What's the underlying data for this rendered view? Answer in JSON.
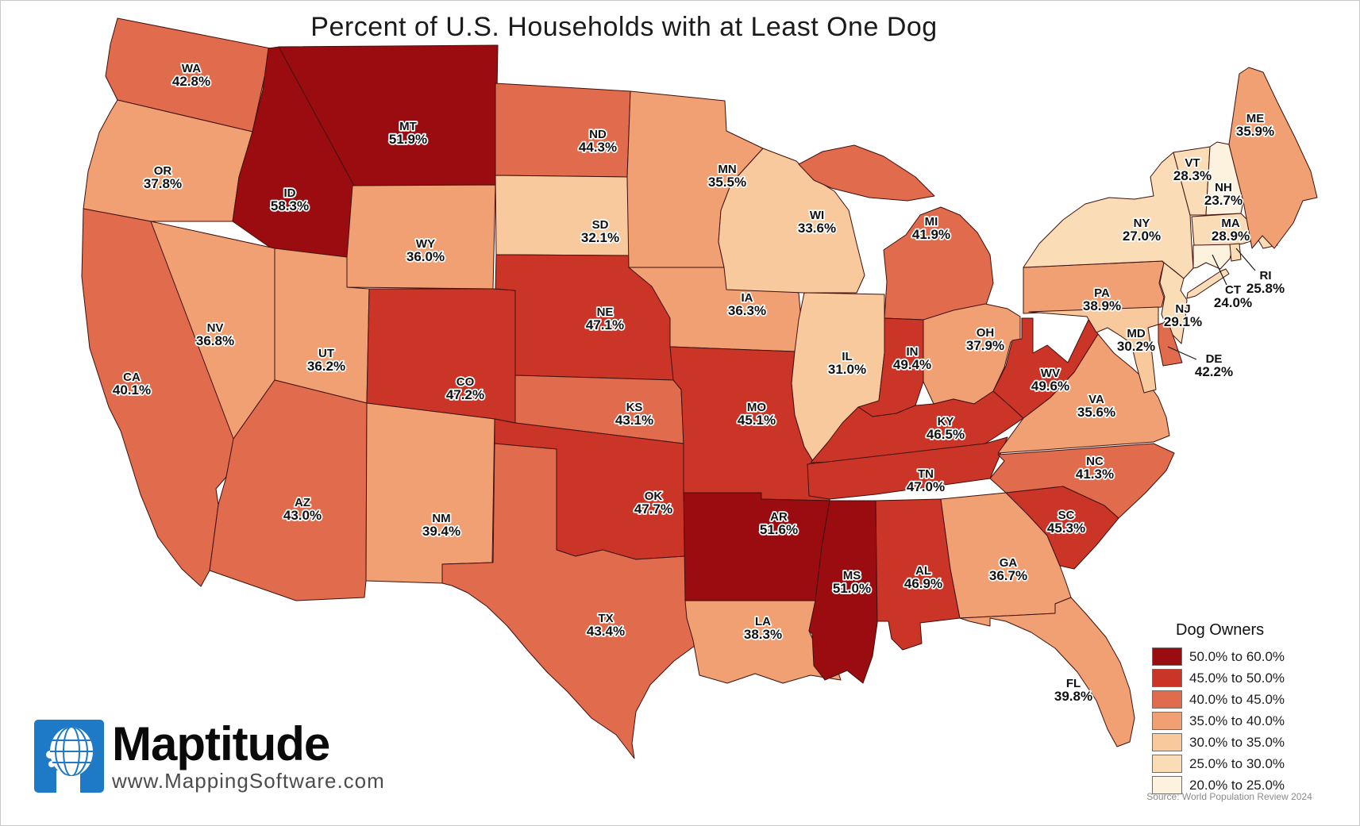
{
  "title": "Percent of U.S. Households with at Least One Dog",
  "legend": {
    "title": "Dog Owners",
    "bands": [
      {
        "label": "50.0% to 60.0%",
        "min": 50.0,
        "max": 60.0,
        "color": "#9A0C10"
      },
      {
        "label": "45.0% to 50.0%",
        "min": 45.0,
        "max": 50.0,
        "color": "#CB3528"
      },
      {
        "label": "40.0% to 45.0%",
        "min": 40.0,
        "max": 45.0,
        "color": "#E06B4D"
      },
      {
        "label": "35.0% to 40.0%",
        "min": 35.0,
        "max": 40.0,
        "color": "#F0A072"
      },
      {
        "label": "30.0% to 35.0%",
        "min": 30.0,
        "max": 35.0,
        "color": "#F7C99C"
      },
      {
        "label": "25.0% to 30.0%",
        "min": 25.0,
        "max": 30.0,
        "color": "#FADDB7"
      },
      {
        "label": "20.0% to 25.0%",
        "min": 20.0,
        "max": 25.0,
        "color": "#FCF2DD"
      }
    ]
  },
  "source": "Source: World Population Review 2024",
  "logo": {
    "name": "Maptitude",
    "url": "www.MappingSoftware.com"
  },
  "states": [
    {
      "abbr": "WA",
      "value": 42.8,
      "label": "42.8%"
    },
    {
      "abbr": "OR",
      "value": 37.8,
      "label": "37.8%"
    },
    {
      "abbr": "CA",
      "value": 40.1,
      "label": "40.1%"
    },
    {
      "abbr": "NV",
      "value": 36.8,
      "label": "36.8%"
    },
    {
      "abbr": "ID",
      "value": 58.3,
      "label": "58.3%"
    },
    {
      "abbr": "MT",
      "value": 51.9,
      "label": "51.9%"
    },
    {
      "abbr": "WY",
      "value": 36.0,
      "label": "36.0%"
    },
    {
      "abbr": "UT",
      "value": 36.2,
      "label": "36.2%"
    },
    {
      "abbr": "AZ",
      "value": 43.0,
      "label": "43.0%"
    },
    {
      "abbr": "NM",
      "value": 39.4,
      "label": "39.4%"
    },
    {
      "abbr": "CO",
      "value": 47.2,
      "label": "47.2%"
    },
    {
      "abbr": "ND",
      "value": 44.3,
      "label": "44.3%"
    },
    {
      "abbr": "SD",
      "value": 32.1,
      "label": "32.1%"
    },
    {
      "abbr": "NE",
      "value": 47.1,
      "label": "47.1%"
    },
    {
      "abbr": "KS",
      "value": 43.1,
      "label": "43.1%"
    },
    {
      "abbr": "OK",
      "value": 47.7,
      "label": "47.7%"
    },
    {
      "abbr": "TX",
      "value": 43.4,
      "label": "43.4%"
    },
    {
      "abbr": "MN",
      "value": 35.5,
      "label": "35.5%"
    },
    {
      "abbr": "IA",
      "value": 36.3,
      "label": "36.3%"
    },
    {
      "abbr": "MO",
      "value": 45.1,
      "label": "45.1%"
    },
    {
      "abbr": "AR",
      "value": 51.6,
      "label": "51.6%"
    },
    {
      "abbr": "LA",
      "value": 38.3,
      "label": "38.3%"
    },
    {
      "abbr": "WI",
      "value": 33.6,
      "label": "33.6%"
    },
    {
      "abbr": "IL",
      "value": 31.0,
      "label": "31.0%"
    },
    {
      "abbr": "MS",
      "value": 51.0,
      "label": "51.0%"
    },
    {
      "abbr": "MI",
      "value": 41.9,
      "label": "41.9%"
    },
    {
      "abbr": "IN",
      "value": 49.4,
      "label": "49.4%"
    },
    {
      "abbr": "OH",
      "value": 37.9,
      "label": "37.9%"
    },
    {
      "abbr": "KY",
      "value": 46.5,
      "label": "46.5%"
    },
    {
      "abbr": "TN",
      "value": 47.0,
      "label": "47.0%"
    },
    {
      "abbr": "AL",
      "value": 46.9,
      "label": "46.9%"
    },
    {
      "abbr": "GA",
      "value": 36.7,
      "label": "36.7%"
    },
    {
      "abbr": "FL",
      "value": 39.8,
      "label": "39.8%"
    },
    {
      "abbr": "SC",
      "value": 45.3,
      "label": "45.3%"
    },
    {
      "abbr": "NC",
      "value": 41.3,
      "label": "41.3%"
    },
    {
      "abbr": "VA",
      "value": 35.6,
      "label": "35.6%"
    },
    {
      "abbr": "WV",
      "value": 49.6,
      "label": "49.6%"
    },
    {
      "abbr": "PA",
      "value": 38.9,
      "label": "38.9%"
    },
    {
      "abbr": "NY",
      "value": 27.0,
      "label": "27.0%"
    },
    {
      "abbr": "NJ",
      "value": 29.1,
      "label": "29.1%"
    },
    {
      "abbr": "MD",
      "value": 30.2,
      "label": "30.2%"
    },
    {
      "abbr": "DE",
      "value": 42.2,
      "label": "42.2%"
    },
    {
      "abbr": "VT",
      "value": 28.3,
      "label": "28.3%"
    },
    {
      "abbr": "NH",
      "value": 23.7,
      "label": "23.7%"
    },
    {
      "abbr": "MA",
      "value": 28.9,
      "label": "28.9%"
    },
    {
      "abbr": "RI",
      "value": 25.8,
      "label": "25.8%"
    },
    {
      "abbr": "CT",
      "value": 24.0,
      "label": "24.0%"
    },
    {
      "abbr": "ME",
      "value": 35.9,
      "label": "35.9%"
    }
  ]
}
